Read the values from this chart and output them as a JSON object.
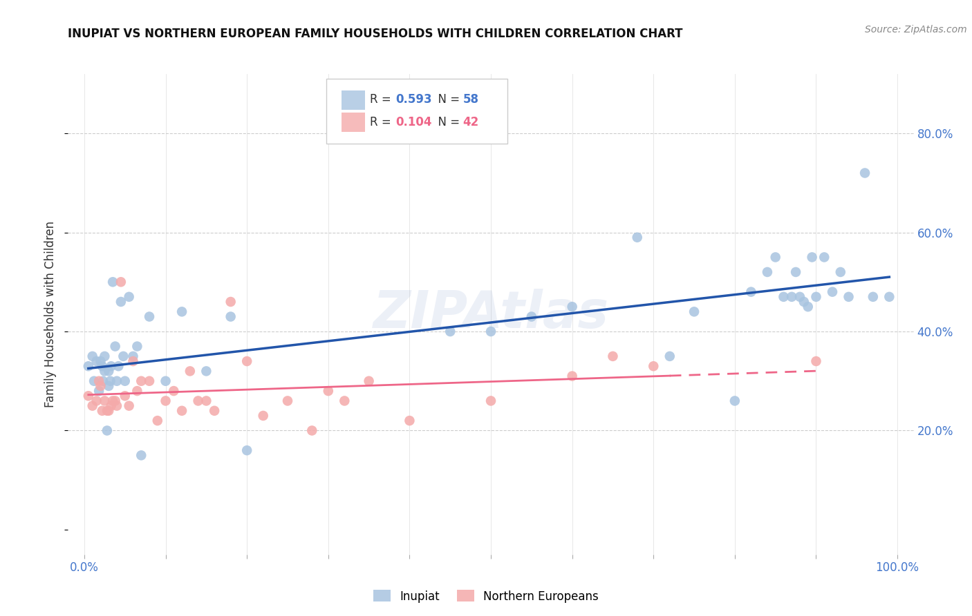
{
  "title": "INUPIAT VS NORTHERN EUROPEAN FAMILY HOUSEHOLDS WITH CHILDREN CORRELATION CHART",
  "source": "Source: ZipAtlas.com",
  "ylabel": "Family Households with Children",
  "inupiat_R": "0.593",
  "inupiat_N": "58",
  "northern_R": "0.104",
  "northern_N": "42",
  "legend_label_1": "Inupiat",
  "legend_label_2": "Northern Europeans",
  "blue_color": "#A8C4E0",
  "pink_color": "#F4AAAA",
  "blue_line_color": "#2255AA",
  "pink_line_color": "#EE6688",
  "blue_text_color": "#4477CC",
  "pink_text_color": "#EE6688",
  "ytick_labels": [
    "20.0%",
    "40.0%",
    "60.0%",
    "80.0%"
  ],
  "ytick_values": [
    0.2,
    0.4,
    0.6,
    0.8
  ],
  "xlim": [
    -0.02,
    1.02
  ],
  "ylim": [
    -0.05,
    0.92
  ],
  "inupiat_x": [
    0.005,
    0.01,
    0.012,
    0.015,
    0.018,
    0.02,
    0.022,
    0.023,
    0.025,
    0.025,
    0.028,
    0.03,
    0.03,
    0.032,
    0.033,
    0.035,
    0.038,
    0.04,
    0.042,
    0.045,
    0.048,
    0.05,
    0.055,
    0.06,
    0.065,
    0.07,
    0.08,
    0.1,
    0.12,
    0.15,
    0.18,
    0.2,
    0.45,
    0.5,
    0.55,
    0.6,
    0.68,
    0.72,
    0.75,
    0.8,
    0.82,
    0.84,
    0.85,
    0.86,
    0.87,
    0.875,
    0.88,
    0.885,
    0.89,
    0.895,
    0.9,
    0.91,
    0.92,
    0.93,
    0.94,
    0.96,
    0.97,
    0.99
  ],
  "inupiat_y": [
    0.33,
    0.35,
    0.3,
    0.34,
    0.28,
    0.34,
    0.33,
    0.3,
    0.32,
    0.35,
    0.2,
    0.29,
    0.32,
    0.3,
    0.33,
    0.5,
    0.37,
    0.3,
    0.33,
    0.46,
    0.35,
    0.3,
    0.47,
    0.35,
    0.37,
    0.15,
    0.43,
    0.3,
    0.44,
    0.32,
    0.43,
    0.16,
    0.4,
    0.4,
    0.43,
    0.45,
    0.59,
    0.35,
    0.44,
    0.26,
    0.48,
    0.52,
    0.55,
    0.47,
    0.47,
    0.52,
    0.47,
    0.46,
    0.45,
    0.55,
    0.47,
    0.55,
    0.48,
    0.52,
    0.47,
    0.72,
    0.47,
    0.47
  ],
  "northern_x": [
    0.005,
    0.01,
    0.015,
    0.018,
    0.02,
    0.022,
    0.025,
    0.028,
    0.03,
    0.033,
    0.035,
    0.038,
    0.04,
    0.045,
    0.05,
    0.055,
    0.06,
    0.065,
    0.07,
    0.08,
    0.09,
    0.1,
    0.11,
    0.12,
    0.13,
    0.14,
    0.15,
    0.16,
    0.18,
    0.2,
    0.22,
    0.25,
    0.28,
    0.3,
    0.32,
    0.35,
    0.4,
    0.5,
    0.6,
    0.65,
    0.7,
    0.9
  ],
  "northern_y": [
    0.27,
    0.25,
    0.26,
    0.3,
    0.29,
    0.24,
    0.26,
    0.24,
    0.24,
    0.25,
    0.26,
    0.26,
    0.25,
    0.5,
    0.27,
    0.25,
    0.34,
    0.28,
    0.3,
    0.3,
    0.22,
    0.26,
    0.28,
    0.24,
    0.32,
    0.26,
    0.26,
    0.24,
    0.46,
    0.34,
    0.23,
    0.26,
    0.2,
    0.28,
    0.26,
    0.3,
    0.22,
    0.26,
    0.31,
    0.35,
    0.33,
    0.34
  ]
}
